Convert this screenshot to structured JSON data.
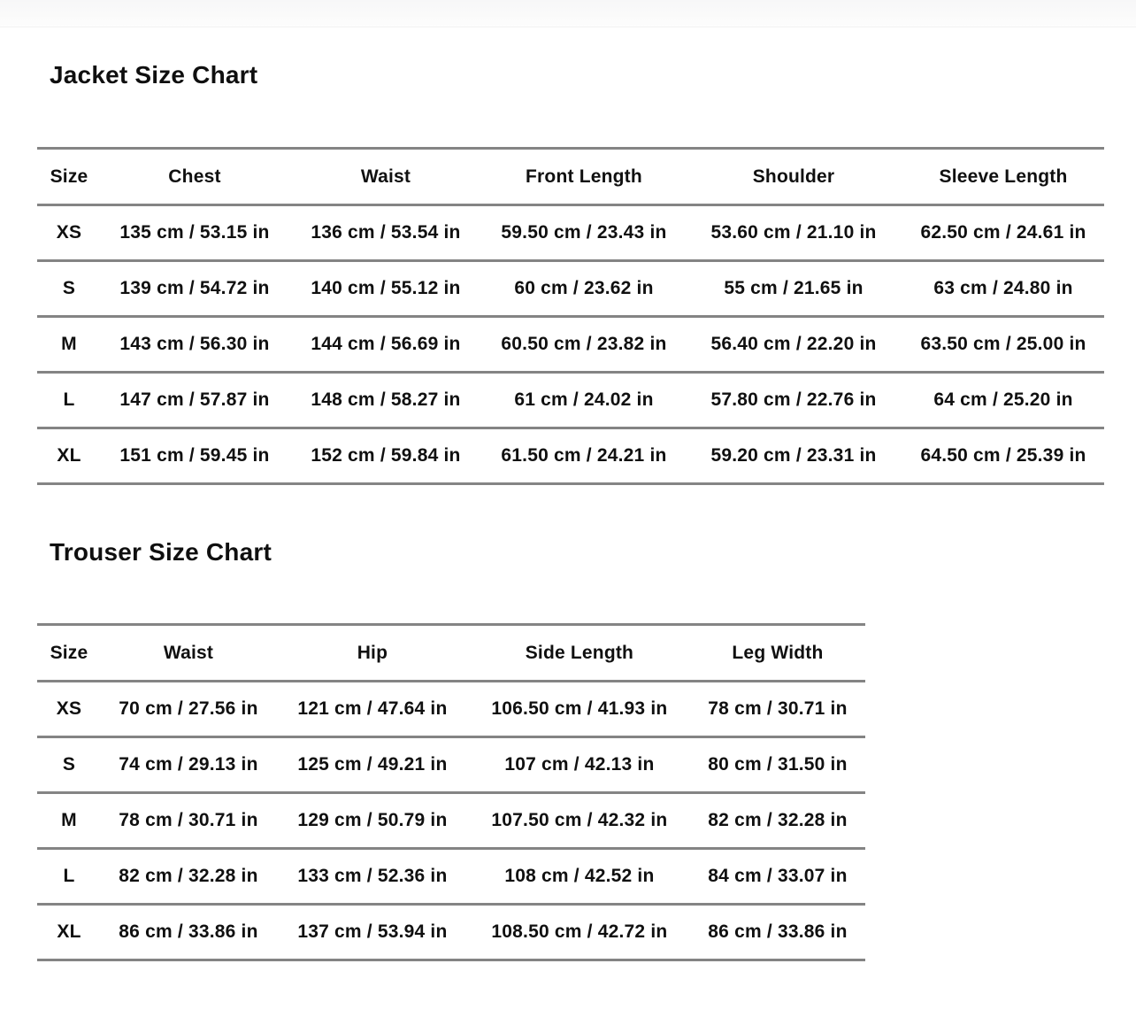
{
  "colors": {
    "background": "#ffffff",
    "divider": "#848484",
    "text": "#101010"
  },
  "jacket_chart": {
    "title": "Jacket Size Chart",
    "columns": [
      "Size",
      "Chest",
      "Waist",
      "Front Length",
      "Shoulder",
      "Sleeve Length"
    ],
    "rows": [
      [
        "XS",
        "135 cm / 53.15 in",
        "136 cm / 53.54 in",
        "59.50 cm / 23.43 in",
        "53.60 cm / 21.10 in",
        "62.50 cm / 24.61 in"
      ],
      [
        "S",
        "139 cm / 54.72 in",
        "140 cm / 55.12 in",
        "60 cm / 23.62 in",
        "55 cm / 21.65 in",
        "63 cm / 24.80 in"
      ],
      [
        "M",
        "143 cm / 56.30 in",
        "144 cm / 56.69 in",
        "60.50 cm / 23.82 in",
        "56.40 cm / 22.20 in",
        "63.50 cm / 25.00 in"
      ],
      [
        "L",
        "147 cm / 57.87 in",
        "148 cm / 58.27 in",
        "61 cm / 24.02 in",
        "57.80 cm / 22.76 in",
        "64 cm / 25.20 in"
      ],
      [
        "XL",
        "151 cm / 59.45 in",
        "152 cm / 59.84 in",
        "61.50 cm / 24.21 in",
        "59.20 cm / 23.31 in",
        "64.50 cm / 25.39 in"
      ]
    ]
  },
  "trouser_chart": {
    "title": "Trouser Size Chart",
    "columns": [
      "Size",
      "Waist",
      "Hip",
      "Side Length",
      "Leg Width"
    ],
    "rows": [
      [
        "XS",
        "70 cm / 27.56 in",
        "121 cm / 47.64 in",
        "106.50 cm / 41.93 in",
        "78 cm / 30.71 in"
      ],
      [
        "S",
        "74 cm / 29.13 in",
        "125 cm / 49.21 in",
        "107 cm / 42.13 in",
        "80 cm / 31.50 in"
      ],
      [
        "M",
        "78 cm / 30.71 in",
        "129 cm / 50.79 in",
        "107.50 cm / 42.32 in",
        "82 cm / 32.28 in"
      ],
      [
        "L",
        "82 cm / 32.28 in",
        "133 cm / 52.36 in",
        "108 cm / 42.52 in",
        "84 cm / 33.07 in"
      ],
      [
        "XL",
        "86 cm / 33.86 in",
        "137 cm / 53.94 in",
        "108.50 cm / 42.72 in",
        "86 cm / 33.86 in"
      ]
    ]
  }
}
